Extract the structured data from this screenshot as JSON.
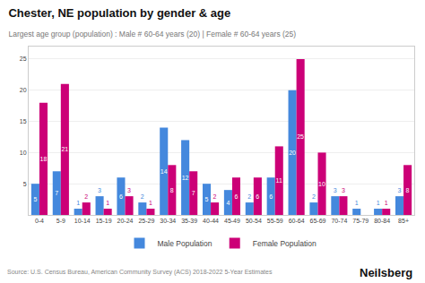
{
  "chart_data": {
    "type": "bar",
    "title": "Chester, NE population by gender & age",
    "subtitle": "Largest age group (population) : Male # 60-64 years (20) | Female # 60-64 years (25)",
    "annotations": [
      "Source: U.S. Census Bureau, American Community Survey (ACS) 2018-2022 5-Year Estimates",
      "Neilsberg"
    ],
    "categories": [
      "0-4",
      "5-9",
      "10-14",
      "15-19",
      "20-24",
      "25-29",
      "30-34",
      "35-39",
      "40-44",
      "45-49",
      "50-54",
      "55-59",
      "60-64",
      "65-69",
      "70-74",
      "75-79",
      "80-84",
      "85+"
    ],
    "series": [
      {
        "name": "Male Population",
        "color": "#4488dd",
        "values": [
          5,
          7,
          1,
          3,
          6,
          2,
          14,
          12,
          5,
          4,
          2,
          6,
          20,
          2,
          3,
          1,
          1,
          3
        ]
      },
      {
        "name": "Female Population",
        "color": "#cc0077",
        "values": [
          18,
          21,
          2,
          1,
          3,
          1,
          8,
          7,
          2,
          6,
          6,
          11,
          25,
          10,
          3,
          0,
          1,
          8
        ],
        "value_labels": [
          "18",
          "21",
          "2",
          "1",
          "3",
          "1",
          "8",
          "7",
          "2",
          "6",
          "6",
          "11",
          "25",
          "10",
          "3",
          null,
          "1",
          "8"
        ]
      }
    ],
    "ylim": [
      0,
      27
    ],
    "yticks": [
      5,
      10,
      15,
      20,
      25
    ],
    "grid": true,
    "legend": "bottom",
    "data_labels": true
  }
}
